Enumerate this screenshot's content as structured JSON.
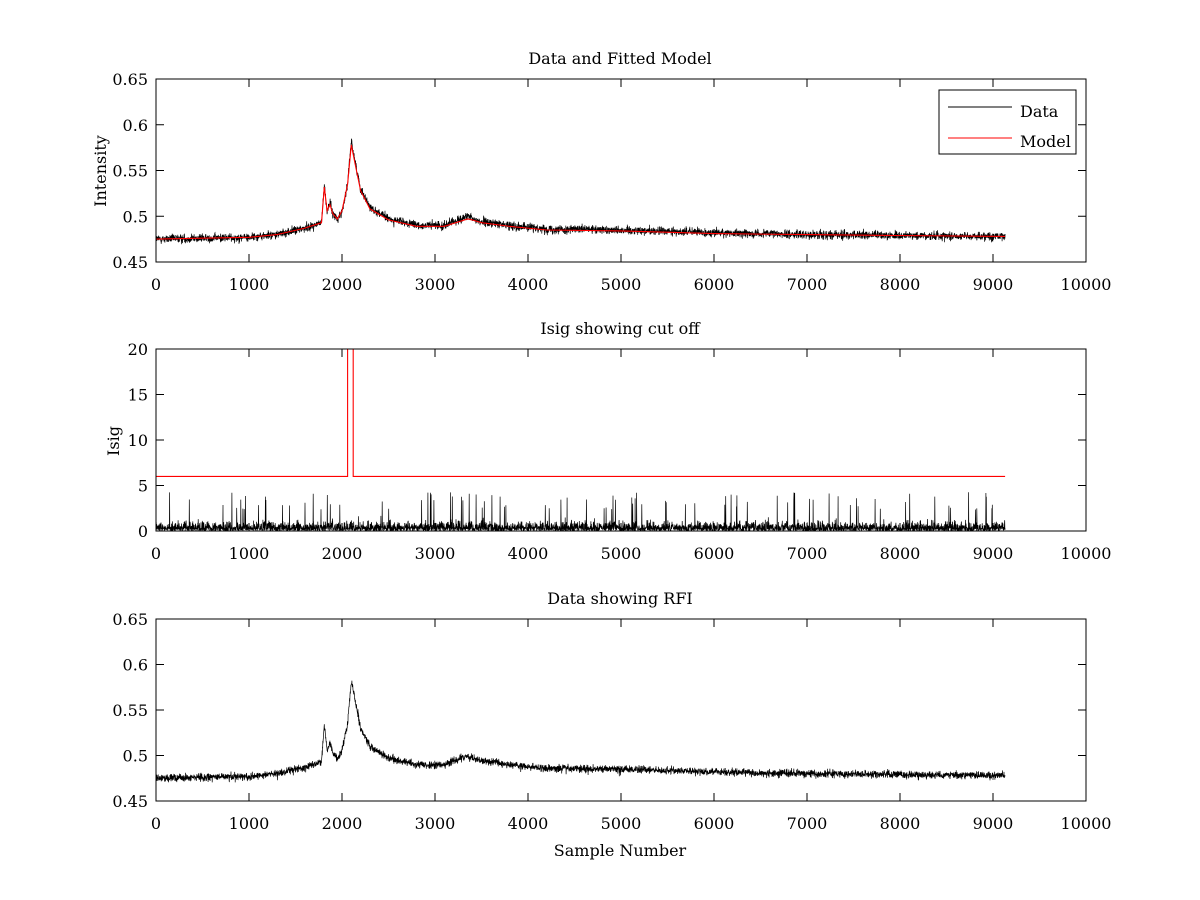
{
  "chart_data": [
    {
      "type": "line",
      "title": "Data and Fitted Model",
      "xlabel": "",
      "ylabel": "Intensity",
      "xlim": [
        0,
        10000
      ],
      "ylim": [
        0.45,
        0.65
      ],
      "xticks": [
        0,
        1000,
        2000,
        3000,
        4000,
        5000,
        6000,
        7000,
        8000,
        9000,
        10000
      ],
      "yticks": [
        0.45,
        0.5,
        0.55,
        0.6,
        0.65
      ],
      "xtick_labels": [
        "0",
        "1000",
        "2000",
        "3000",
        "4000",
        "5000",
        "6000",
        "7000",
        "8000",
        "9000",
        "10000"
      ],
      "ytick_labels": [
        "0.45",
        "0.5",
        "0.55",
        "0.6",
        "0.65"
      ],
      "grid": false,
      "legend": {
        "position": "top-right",
        "entries": [
          "Data",
          "Model"
        ]
      },
      "series": [
        {
          "name": "Data",
          "color": "#000000",
          "noise": 0.009,
          "x": [
            0,
            500,
            1000,
            1300,
            1600,
            1780,
            1810,
            1840,
            1870,
            1900,
            1950,
            2000,
            2060,
            2100,
            2150,
            2200,
            2300,
            2500,
            2800,
            3100,
            3350,
            3400,
            3500,
            3800,
            4200,
            5000,
            6000,
            7000,
            8000,
            9130
          ],
          "y": [
            0.475,
            0.476,
            0.477,
            0.48,
            0.487,
            0.493,
            0.535,
            0.505,
            0.515,
            0.503,
            0.497,
            0.505,
            0.535,
            0.583,
            0.555,
            0.53,
            0.51,
            0.497,
            0.49,
            0.49,
            0.5,
            0.497,
            0.494,
            0.49,
            0.486,
            0.485,
            0.482,
            0.48,
            0.479,
            0.478
          ]
        },
        {
          "name": "Model",
          "color": "#ff0000",
          "x": [
            0,
            500,
            1000,
            1300,
            1600,
            1780,
            1810,
            1840,
            1870,
            1900,
            1950,
            2000,
            2060,
            2100,
            2150,
            2200,
            2300,
            2500,
            2800,
            3100,
            3350,
            3400,
            3500,
            3800,
            4200,
            5000,
            6000,
            7000,
            8000,
            9130
          ],
          "y": [
            0.475,
            0.476,
            0.477,
            0.48,
            0.487,
            0.493,
            0.532,
            0.506,
            0.513,
            0.503,
            0.497,
            0.506,
            0.535,
            0.578,
            0.553,
            0.528,
            0.508,
            0.496,
            0.489,
            0.489,
            0.497,
            0.496,
            0.493,
            0.489,
            0.485,
            0.484,
            0.481,
            0.48,
            0.479,
            0.478
          ]
        }
      ]
    },
    {
      "type": "line",
      "title": "Isig showing cut off",
      "xlabel": "",
      "ylabel": "Isig",
      "xlim": [
        0,
        10000
      ],
      "ylim": [
        0,
        20
      ],
      "xticks": [
        0,
        1000,
        2000,
        3000,
        4000,
        5000,
        6000,
        7000,
        8000,
        9000,
        10000
      ],
      "yticks": [
        0,
        5,
        10,
        15,
        20
      ],
      "xtick_labels": [
        "0",
        "1000",
        "2000",
        "3000",
        "4000",
        "5000",
        "6000",
        "7000",
        "8000",
        "9000",
        "10000"
      ],
      "ytick_labels": [
        "0",
        "5",
        "10",
        "15",
        "20"
      ],
      "grid": false,
      "series": [
        {
          "color": "#000000",
          "noise_range": [
            0,
            4.3
          ],
          "typical": 1.0,
          "x": [
            0,
            9130
          ]
        },
        {
          "color": "#ff0000",
          "x": [
            0,
            2060,
            2060,
            2120,
            2120,
            9130
          ],
          "y": [
            6,
            6,
            20,
            20,
            6,
            6
          ]
        }
      ]
    },
    {
      "type": "line",
      "title": "Data showing RFI",
      "xlabel": "Sample Number",
      "ylabel": "",
      "xlim": [
        0,
        10000
      ],
      "ylim": [
        0.45,
        0.65
      ],
      "xticks": [
        0,
        1000,
        2000,
        3000,
        4000,
        5000,
        6000,
        7000,
        8000,
        9000,
        10000
      ],
      "yticks": [
        0.45,
        0.5,
        0.55,
        0.6,
        0.65
      ],
      "xtick_labels": [
        "0",
        "1000",
        "2000",
        "3000",
        "4000",
        "5000",
        "6000",
        "7000",
        "8000",
        "9000",
        "10000"
      ],
      "ytick_labels": [
        "0.45",
        "0.5",
        "0.55",
        "0.6",
        "0.65"
      ],
      "grid": false,
      "series": [
        {
          "color": "#000000",
          "noise": 0.008,
          "x": [
            0,
            500,
            1000,
            1300,
            1600,
            1780,
            1810,
            1840,
            1870,
            1900,
            1950,
            2000,
            2060,
            2100,
            2150,
            2200,
            2300,
            2500,
            2800,
            3100,
            3350,
            3400,
            3500,
            3800,
            4200,
            5000,
            6000,
            7000,
            8000,
            9130
          ],
          "y": [
            0.475,
            0.476,
            0.477,
            0.48,
            0.487,
            0.493,
            0.535,
            0.505,
            0.515,
            0.503,
            0.497,
            0.505,
            0.535,
            0.583,
            0.555,
            0.53,
            0.51,
            0.497,
            0.49,
            0.49,
            0.5,
            0.497,
            0.494,
            0.49,
            0.486,
            0.485,
            0.482,
            0.48,
            0.479,
            0.478
          ]
        }
      ]
    }
  ]
}
